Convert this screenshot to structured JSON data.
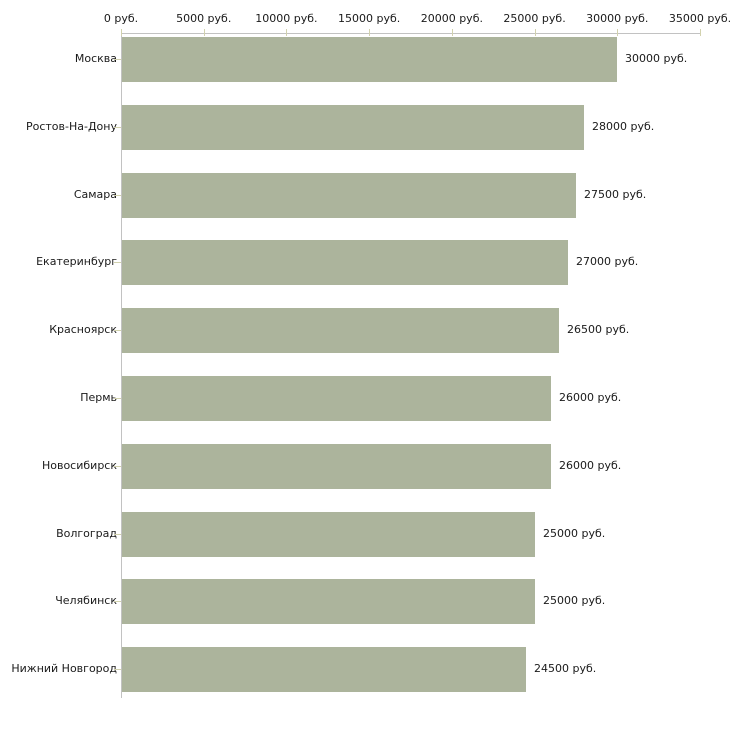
{
  "chart_data": {
    "type": "bar",
    "orientation": "horizontal",
    "title": "",
    "xlabel": "",
    "ylabel": "",
    "categories": [
      "Москва",
      "Ростов-На-Дону",
      "Самара",
      "Екатеринбург",
      "Красноярск",
      "Пермь",
      "Новосибирск",
      "Волгоград",
      "Челябинск",
      "Нижний Новгород"
    ],
    "values": [
      30000,
      28000,
      27500,
      27000,
      26500,
      26000,
      26000,
      25000,
      25000,
      24500
    ],
    "bar_labels": [
      "30000 руб.",
      "28000 руб.",
      "27500 руб.",
      "27000 руб.",
      "26500 руб.",
      "26000 руб.",
      "26000 руб.",
      "25000 руб.",
      "25000 руб.",
      "24500 руб."
    ],
    "x_axis": {
      "position": "top",
      "range": [
        0,
        35000
      ],
      "ticks": [
        0,
        5000,
        10000,
        15000,
        20000,
        25000,
        30000,
        35000
      ],
      "tick_labels": [
        "0 руб.",
        "5000 руб.",
        "10000 руб.",
        "15000 руб.",
        "20000 руб.",
        "25000 руб.",
        "30000 руб.",
        "35000 руб."
      ]
    },
    "grid": false,
    "legend": false,
    "colors": {
      "bar": "#acb49c",
      "axis_line": "#c2c2c2",
      "tick_mark": "#d2d2ae",
      "text": "#1a1a1a",
      "background": "#ffffff"
    }
  }
}
